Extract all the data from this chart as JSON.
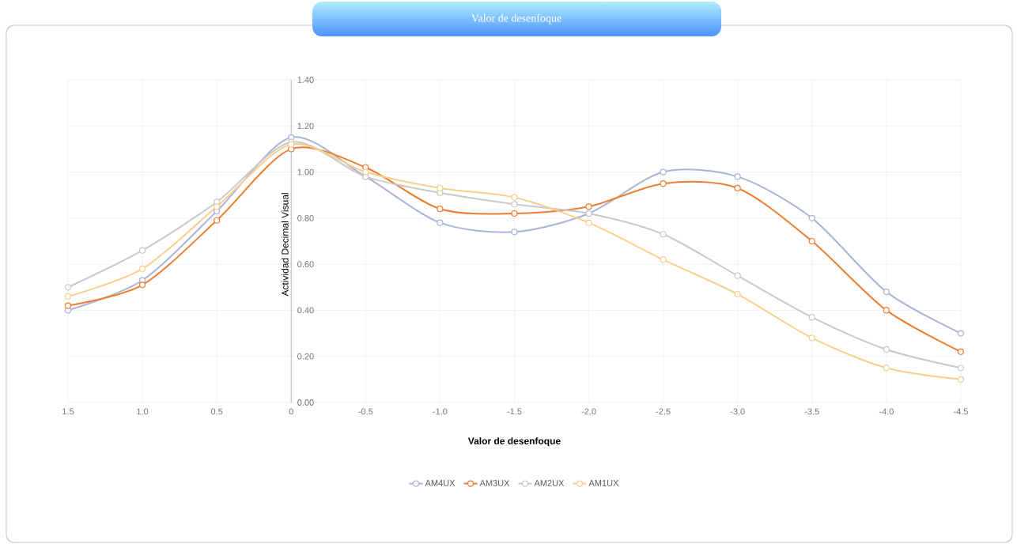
{
  "chart_data": {
    "type": "line",
    "title": "Valor de desenfoque",
    "xlabel": "Valor de desenfoque",
    "ylabel": "Actividad Decimal Visual",
    "x": [
      1.5,
      1.0,
      0.5,
      0,
      -0.5,
      -1.0,
      -1.5,
      -2.0,
      -2.5,
      -3.0,
      -3.5,
      -4.0,
      -4.5
    ],
    "series": [
      {
        "name": "AM4UX",
        "color": "#a9b4d6",
        "values": [
          0.4,
          0.53,
          0.83,
          1.15,
          0.98,
          0.78,
          0.74,
          0.82,
          1.0,
          0.98,
          0.8,
          0.48,
          0.3
        ]
      },
      {
        "name": "AM3UX",
        "color": "#ed7d31",
        "values": [
          0.42,
          0.51,
          0.79,
          1.1,
          1.02,
          0.84,
          0.82,
          0.85,
          0.95,
          0.93,
          0.7,
          0.4,
          0.22
        ]
      },
      {
        "name": "AM2UX",
        "color": "#c9c9c9",
        "values": [
          0.5,
          0.66,
          0.87,
          1.13,
          0.98,
          0.91,
          0.86,
          0.82,
          0.73,
          0.55,
          0.37,
          0.23,
          0.15
        ]
      },
      {
        "name": "AM1UX",
        "color": "#f8cf8f",
        "values": [
          0.46,
          0.58,
          0.85,
          1.12,
          1.0,
          0.93,
          0.89,
          0.78,
          0.62,
          0.47,
          0.28,
          0.15,
          0.1
        ]
      }
    ],
    "xlim": [
      1.5,
      -4.5
    ],
    "xticks": [
      {
        "value": 1.5,
        "label": "1.5"
      },
      {
        "value": 1.0,
        "label": "1.0"
      },
      {
        "value": 0.5,
        "label": "0.5"
      },
      0,
      {
        "value": -0.5,
        "label": "-0.5"
      },
      {
        "value": -1.0,
        "label": "-1.0"
      },
      {
        "value": -1.5,
        "label": "-1.5"
      },
      {
        "value": -2.0,
        "label": "-2.0"
      },
      {
        "value": -2.5,
        "label": "-2.5"
      },
      {
        "value": -3.0,
        "label": "-3.0"
      },
      {
        "value": -3.5,
        "label": "-3.5"
      },
      {
        "value": -4.0,
        "label": "-4.0"
      },
      {
        "value": -4.5,
        "label": "-4.5"
      }
    ],
    "ylim": [
      0,
      1.4
    ],
    "yticks": [
      {
        "value": 0,
        "label": "0.00"
      },
      {
        "value": 0.2,
        "label": "0.20"
      },
      {
        "value": 0.4,
        "label": "0.40"
      },
      {
        "value": 0.6,
        "label": "0.60"
      },
      {
        "value": 0.8,
        "label": "0.80"
      },
      {
        "value": 1.0,
        "label": "1.00"
      },
      {
        "value": 1.2,
        "label": "1.20"
      },
      {
        "value": 1.4,
        "label": "1.40"
      }
    ],
    "grid": true,
    "legend": "bottom",
    "marker": "circle",
    "line_style": "solid"
  }
}
